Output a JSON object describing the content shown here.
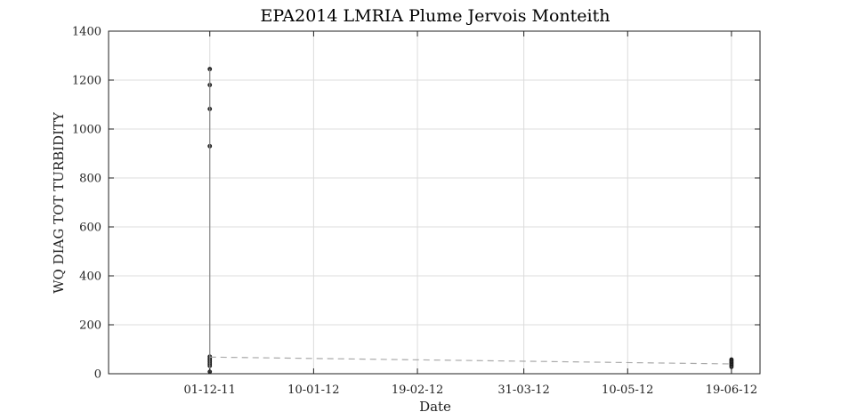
{
  "chart_data": {
    "type": "scatter",
    "title": "EPA2014 LMRIA Plume Jervois Monteith",
    "xlabel": "Date",
    "ylabel": "WQ DIAG TOT TURBIDITY",
    "xlim": [
      "2011-10-23",
      "2012-06-30"
    ],
    "ylim": [
      0,
      1400
    ],
    "xticks": [
      "2011-12-01",
      "2012-01-10",
      "2012-02-19",
      "2012-03-31",
      "2012-05-10",
      "2012-06-19"
    ],
    "xtick_labels": [
      "01-12-11",
      "10-01-12",
      "19-02-12",
      "31-03-12",
      "10-05-12",
      "19-06-12"
    ],
    "yticks": [
      0,
      200,
      400,
      600,
      800,
      1000,
      1200,
      1400
    ],
    "grid": true,
    "series": [
      {
        "style": "points",
        "color": "#333333",
        "points": [
          {
            "x": "2011-12-01",
            "y": 1245
          },
          {
            "x": "2011-12-01",
            "y": 1180
          },
          {
            "x": "2011-12-01",
            "y": 1082
          },
          {
            "x": "2011-12-01",
            "y": 930
          },
          {
            "x": "2011-12-01",
            "y": 70
          },
          {
            "x": "2011-12-01",
            "y": 62
          },
          {
            "x": "2011-12-01",
            "y": 55
          },
          {
            "x": "2011-12-01",
            "y": 48
          },
          {
            "x": "2011-12-01",
            "y": 40
          },
          {
            "x": "2011-12-01",
            "y": 32
          },
          {
            "x": "2011-12-01",
            "y": 8
          },
          {
            "x": "2012-06-19",
            "y": 58
          },
          {
            "x": "2012-06-19",
            "y": 52
          },
          {
            "x": "2012-06-19",
            "y": 46
          },
          {
            "x": "2012-06-19",
            "y": 40
          },
          {
            "x": "2012-06-19",
            "y": 34
          },
          {
            "x": "2012-06-19",
            "y": 28
          }
        ]
      },
      {
        "style": "vertical-range",
        "color": "#888888",
        "x": "2011-12-01",
        "y_range": [
          8,
          1245
        ]
      },
      {
        "style": "dashed-line",
        "color": "#aaaaaa",
        "points": [
          {
            "x": "2011-12-01",
            "y": 68
          },
          {
            "x": "2012-06-19",
            "y": 40
          }
        ]
      }
    ]
  }
}
